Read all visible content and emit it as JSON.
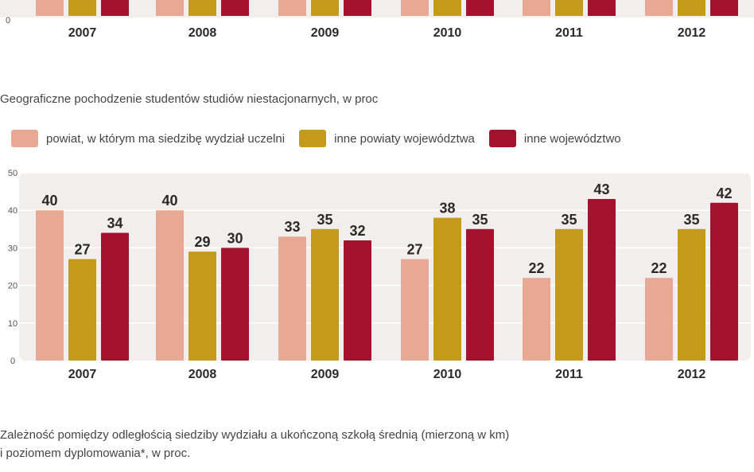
{
  "top_chart": {
    "zero_label": "0",
    "years": [
      "2007",
      "2008",
      "2009",
      "2010",
      "2011",
      "2012"
    ]
  },
  "subtitle": "Geograficzne pochodzenie studentów studiów niestacjonarnych, w proc",
  "legend": [
    {
      "label": "powiat, w którym ma siedzibę wydział uczelni",
      "color": "#e8a994"
    },
    {
      "label": "inne powiaty województwa",
      "color": "#c49a1a"
    },
    {
      "label": "inne województwo",
      "color": "#a5122d"
    }
  ],
  "chart_data": {
    "type": "bar",
    "title": "Geograficzne pochodzenie studentów studiów niestacjonarnych, w proc",
    "categories": [
      "2007",
      "2008",
      "2009",
      "2010",
      "2011",
      "2012"
    ],
    "series": [
      {
        "name": "powiat, w którym ma siedzibę wydział uczelni",
        "color": "#e8a994",
        "values": [
          40,
          40,
          33,
          27,
          22,
          22
        ]
      },
      {
        "name": "inne powiaty województwa",
        "color": "#c49a1a",
        "values": [
          27,
          29,
          35,
          38,
          35,
          35
        ]
      },
      {
        "name": "inne województwo",
        "color": "#a5122d",
        "values": [
          34,
          30,
          32,
          35,
          43,
          42
        ]
      }
    ],
    "yticks": [
      0,
      10,
      20,
      30,
      40,
      50
    ],
    "ylim": [
      0,
      50
    ],
    "xlabel": "",
    "ylabel": "",
    "grid": true,
    "legend": "top-left"
  },
  "footer": {
    "line1": "Zależność pomiędzy odległością siedziby wydziału a ukończoną szkołą średnią (mierzoną w km)",
    "line2": "i poziomem dyplomowania*, w proc."
  }
}
